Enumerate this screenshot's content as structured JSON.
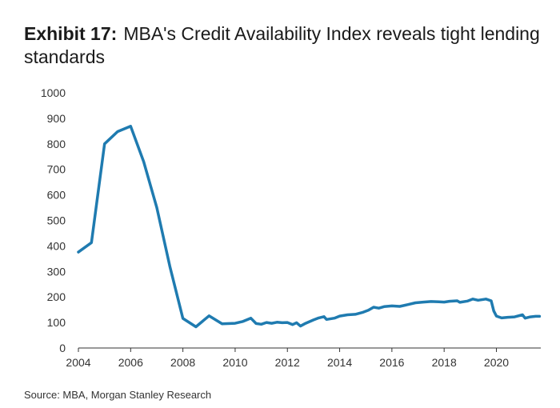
{
  "title": {
    "label": "Exhibit 17:",
    "text": "MBA's Credit Availability Index reveals tight lending standards"
  },
  "source": "Source: MBA, Morgan Stanley Research",
  "colors": {
    "line": "#1f7bb0",
    "axis": "#333333"
  },
  "chart_data": {
    "type": "line",
    "title": "MBA's Credit Availability Index reveals tight lending standards",
    "xlabel": "",
    "ylabel": "",
    "xlim": [
      2004,
      2021.7
    ],
    "ylim": [
      0,
      1000
    ],
    "grid": false,
    "y_ticks": [
      0,
      100,
      200,
      300,
      400,
      500,
      600,
      700,
      800,
      900,
      1000
    ],
    "x_ticks": [
      2004,
      2006,
      2008,
      2010,
      2012,
      2014,
      2016,
      2018,
      2020
    ],
    "series": [
      {
        "name": "MBA Credit Availability Index",
        "x": [
          2004.0,
          2004.5,
          2005.0,
          2005.5,
          2006.0,
          2006.5,
          2007.0,
          2007.5,
          2008.0,
          2008.5,
          2009.0,
          2009.5,
          2010.0,
          2010.3,
          2010.6,
          2010.8,
          2011.0,
          2011.2,
          2011.4,
          2011.6,
          2011.8,
          2012.0,
          2012.2,
          2012.35,
          2012.5,
          2012.7,
          2013.0,
          2013.2,
          2013.4,
          2013.5,
          2013.8,
          2014.0,
          2014.3,
          2014.6,
          2014.9,
          2015.1,
          2015.3,
          2015.5,
          2015.7,
          2016.0,
          2016.3,
          2016.6,
          2016.9,
          2017.2,
          2017.5,
          2017.8,
          2018.0,
          2018.2,
          2018.5,
          2018.6,
          2018.9,
          2019.1,
          2019.3,
          2019.6,
          2019.8,
          2019.9,
          2020.0,
          2020.2,
          2020.4,
          2020.7,
          2021.0,
          2021.1,
          2021.3,
          2021.5,
          2021.65
        ],
        "y": [
          376,
          413,
          800,
          848,
          869,
          730,
          550,
          320,
          116,
          83,
          126,
          95,
          97,
          104,
          117,
          96,
          93,
          100,
          97,
          101,
          99,
          100,
          92,
          99,
          86,
          97,
          110,
          118,
          123,
          112,
          117,
          125,
          130,
          132,
          140,
          148,
          160,
          156,
          162,
          165,
          163,
          170,
          177,
          180,
          182,
          181,
          180,
          183,
          185,
          179,
          184,
          192,
          187,
          192,
          185,
          145,
          125,
          118,
          120,
          122,
          130,
          117,
          122,
          124,
          124
        ]
      }
    ]
  }
}
